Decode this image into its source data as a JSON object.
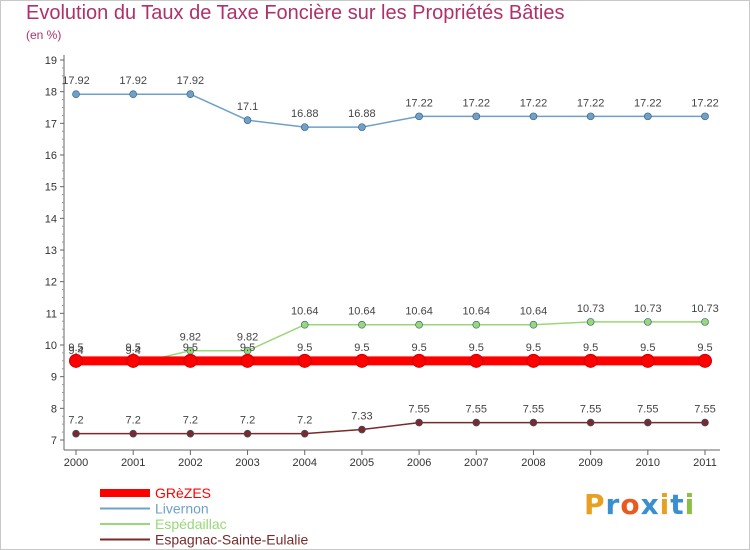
{
  "title": "Evolution du Taux de Taxe Foncière sur les Propriétés Bâties",
  "subtitle": "(en %)",
  "logo": {
    "text": "Proxiti",
    "colors": [
      "#e8a020",
      "#3a8fd0",
      "#e85a20",
      "#3a8fd0",
      "#e8a020",
      "#3a8fd0",
      "#8ac040"
    ]
  },
  "chart_data": {
    "type": "line",
    "title": "Evolution du Taux de Taxe Foncière sur les Propriétés Bâties",
    "ylabel": "(en %)",
    "xlabel": "",
    "ylim": [
      7,
      19
    ],
    "yticks": [
      "7",
      "8",
      "9",
      "10",
      "11",
      "12",
      "13",
      "14",
      "15",
      "16",
      "17",
      "18",
      "19"
    ],
    "categories": [
      "2000",
      "2001",
      "2002",
      "2003",
      "2004",
      "2005",
      "2006",
      "2007",
      "2008",
      "2009",
      "2010",
      "2011"
    ],
    "grid": false,
    "legend_position": "bottom-left",
    "series": [
      {
        "name": "GRèZES",
        "color": "#ff0000",
        "values": [
          9.5,
          9.5,
          9.5,
          9.5,
          9.5,
          9.5,
          9.5,
          9.5,
          9.5,
          9.5,
          9.5,
          9.5
        ],
        "labels": [
          "9.5",
          "9.5",
          "9.5",
          "9.5",
          "9.5",
          "9.5",
          "9.5",
          "9.5",
          "9.5",
          "9.5",
          "9.5",
          "9.5"
        ]
      },
      {
        "name": "Livernon",
        "color": "#6fa0c8",
        "values": [
          17.92,
          17.92,
          17.92,
          17.1,
          16.88,
          16.88,
          17.22,
          17.22,
          17.22,
          17.22,
          17.22,
          17.22
        ],
        "labels": [
          "17.92",
          "17.92",
          "17.92",
          "17.1",
          "16.88",
          "16.88",
          "17.22",
          "17.22",
          "17.22",
          "17.22",
          "17.22",
          "17.22"
        ]
      },
      {
        "name": "Espédaillac",
        "color": "#98d878",
        "values": [
          9.4,
          9.4,
          9.82,
          9.82,
          10.64,
          10.64,
          10.64,
          10.64,
          10.64,
          10.73,
          10.73,
          10.73
        ],
        "labels": [
          "9.4",
          "9.4",
          "9.82",
          "9.82",
          "10.64",
          "10.64",
          "10.64",
          "10.64",
          "10.64",
          "10.73",
          "10.73",
          "10.73"
        ]
      },
      {
        "name": "Espagnac-Sainte-Eulalie",
        "color": "#7a2a2a",
        "values": [
          7.2,
          7.2,
          7.2,
          7.2,
          7.2,
          7.33,
          7.55,
          7.55,
          7.55,
          7.55,
          7.55,
          7.55
        ],
        "labels": [
          "7.2",
          "7.2",
          "7.2",
          "7.2",
          "7.2",
          "7.33",
          "7.55",
          "7.55",
          "7.55",
          "7.55",
          "7.55",
          "7.55"
        ]
      }
    ]
  }
}
